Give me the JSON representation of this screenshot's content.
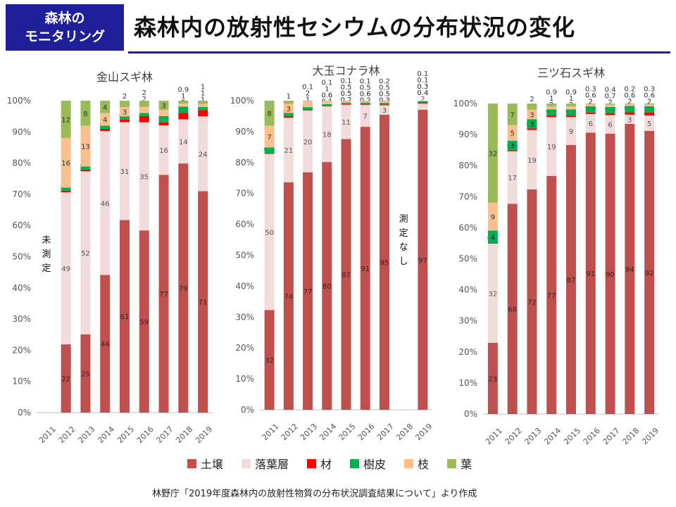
{
  "header": {
    "badge_line1": "森林の",
    "badge_line2": "モニタリング",
    "title": "森林内の放射性セシウムの分布状況の変化"
  },
  "legend": [
    {
      "label": "土壌",
      "color": "#c0504d"
    },
    {
      "label": "落葉層",
      "color": "#f2dcdb"
    },
    {
      "label": "材",
      "color": "#ff0000"
    },
    {
      "label": "樹皮",
      "color": "#00b050"
    },
    {
      "label": "枝",
      "color": "#fac090"
    },
    {
      "label": "葉",
      "color": "#9bbb59"
    }
  ],
  "source": "林野庁「2019年度森林内の放射性物質の分布状況調査結果について」より作成",
  "chart_data": [
    {
      "type": "bar",
      "stacked": true,
      "title": "金山スギ林",
      "categories": [
        "2011",
        "2012",
        "2013",
        "2014",
        "2015",
        "2016",
        "2017",
        "2018",
        "2019"
      ],
      "ylim": [
        0,
        100
      ],
      "yticks": [
        "0%",
        "10%",
        "20%",
        "30%",
        "40%",
        "50%",
        "60%",
        "70%",
        "80%",
        "90%",
        "100%"
      ],
      "series": [
        {
          "name": "土壌",
          "values": [
            null,
            22,
            25,
            44,
            61,
            59,
            77,
            79,
            71
          ]
        },
        {
          "name": "落葉層",
          "values": [
            null,
            49,
            52,
            46,
            31,
            35,
            16,
            14,
            24
          ]
        },
        {
          "name": "材",
          "values": [
            null,
            0.5,
            0.5,
            0.7,
            0.8,
            2,
            1,
            2,
            2
          ]
        },
        {
          "name": "樹皮",
          "values": [
            null,
            1,
            1,
            1,
            1,
            1,
            2,
            2,
            1
          ]
        },
        {
          "name": "枝",
          "values": [
            null,
            16,
            13,
            4,
            3,
            2,
            2,
            1,
            1
          ]
        },
        {
          "name": "葉",
          "values": [
            null,
            12,
            8,
            4,
            2,
            2,
            3,
            0.9,
            1
          ]
        }
      ],
      "annotations": [
        "未測定"
      ]
    },
    {
      "type": "bar",
      "stacked": true,
      "title": "大玉コナラ林",
      "categories": [
        "2011",
        "2012",
        "2013",
        "2014",
        "2015",
        "2016",
        "2017",
        "2018",
        "2019"
      ],
      "ylim": [
        0,
        100
      ],
      "yticks": [
        "0%",
        "10%",
        "20%",
        "30%",
        "40%",
        "50%",
        "60%",
        "70%",
        "80%",
        "90%",
        "100%"
      ],
      "series": [
        {
          "name": "土壌",
          "values": [
            32,
            74,
            77,
            80,
            87,
            91,
            95,
            null,
            97
          ]
        },
        {
          "name": "落葉層",
          "values": [
            50,
            21,
            20,
            18,
            11,
            7,
            3,
            null,
            2
          ]
        },
        {
          "name": "材",
          "values": [
            0.1,
            0.5,
            0.1,
            0.1,
            0.2,
            0.2,
            0.3,
            null,
            0.4
          ]
        },
        {
          "name": "樹皮",
          "values": [
            2,
            1,
            1,
            0.6,
            0.5,
            0.6,
            0.5,
            null,
            0.3
          ]
        },
        {
          "name": "枝",
          "values": [
            7,
            3,
            2,
            1,
            0.5,
            0.5,
            0.5,
            null,
            0.1
          ]
        },
        {
          "name": "葉",
          "values": [
            8,
            1,
            0.1,
            0.1,
            0.1,
            0.1,
            0.2,
            null,
            0.1
          ]
        }
      ],
      "annotations": [
        "測定なし"
      ]
    },
    {
      "type": "bar",
      "stacked": true,
      "title": "三ツ石スギ林",
      "categories": [
        "2011",
        "2012",
        "2013",
        "2014",
        "2015",
        "2016",
        "2017",
        "2018",
        "2019"
      ],
      "ylim": [
        0,
        100
      ],
      "yticks": [
        "0%",
        "10%",
        "20%",
        "30%",
        "40%",
        "50%",
        "60%",
        "70%",
        "80%",
        "90%",
        "100%"
      ],
      "series": [
        {
          "name": "土壌",
          "values": [
            23,
            68,
            72,
            77,
            87,
            91,
            90,
            94,
            92
          ]
        },
        {
          "name": "落葉層",
          "values": [
            32,
            17,
            19,
            19,
            9,
            6,
            6,
            3,
            5
          ]
        },
        {
          "name": "材",
          "values": [
            0.2,
            0.4,
            0.5,
            0.5,
            0.5,
            0.5,
            0.6,
            0.8,
            1
          ]
        },
        {
          "name": "樹皮",
          "values": [
            4,
            3,
            3,
            2,
            2,
            2,
            2,
            2,
            2
          ]
        },
        {
          "name": "枝",
          "values": [
            9,
            5,
            3,
            1,
            1,
            0.6,
            0.7,
            0.6,
            0.6
          ]
        },
        {
          "name": "葉",
          "values": [
            32,
            7,
            2,
            0.9,
            0.9,
            0.3,
            0.4,
            0.2,
            0.3
          ]
        }
      ]
    }
  ]
}
